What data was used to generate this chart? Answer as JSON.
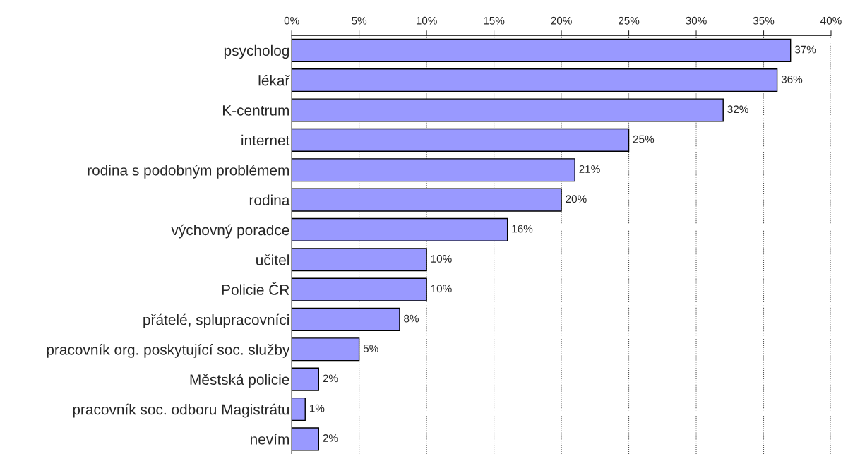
{
  "chart_data": {
    "type": "bar",
    "orientation": "horizontal",
    "categories": [
      "psycholog",
      "lékař",
      "K-centrum",
      "internet",
      "rodina s podobným problémem",
      "rodina",
      "výchovný poradce",
      "učitel",
      "Policie ČR",
      "přátelé, splupracovníci",
      "pracovník org. poskytující soc. služby",
      "Městská policie",
      "pracovník soc. odboru Magistrátu",
      "nevím"
    ],
    "values": [
      37,
      36,
      32,
      25,
      21,
      20,
      16,
      10,
      10,
      8,
      5,
      2,
      1,
      2
    ],
    "value_labels": [
      "37%",
      "36%",
      "32%",
      "25%",
      "21%",
      "20%",
      "16%",
      "10%",
      "10%",
      "8%",
      "5%",
      "2%",
      "1%",
      "2%"
    ],
    "color": "#9999ff",
    "xlim": [
      0,
      40
    ],
    "xticks": [
      {
        "value": 0,
        "label": "0%"
      },
      {
        "value": 5,
        "label": "5%"
      },
      {
        "value": 10,
        "label": "10%"
      },
      {
        "value": 15,
        "label": "15%"
      },
      {
        "value": 20,
        "label": "20%"
      },
      {
        "value": 25,
        "label": "25%"
      },
      {
        "value": 30,
        "label": "30%"
      },
      {
        "value": 35,
        "label": "35%"
      },
      {
        "value": 40,
        "label": "40%"
      }
    ],
    "grid": "x"
  }
}
